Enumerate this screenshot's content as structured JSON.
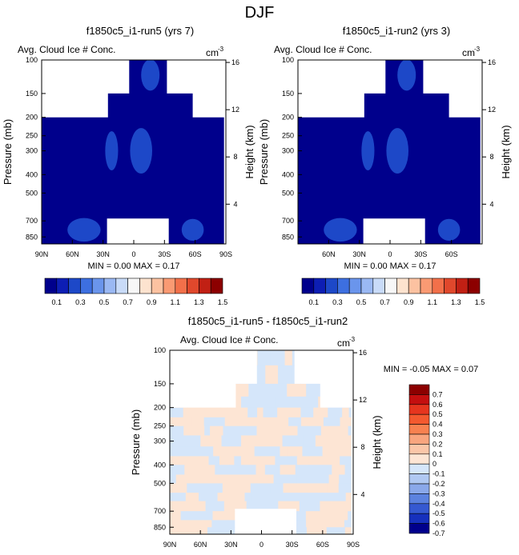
{
  "page": {
    "title": "DJF"
  },
  "colors": {
    "base_fill": "#00008c",
    "blob_fill": "#1d48c8",
    "positive_diff": "#fde5d4",
    "negative_diff": "#d5e6fa"
  },
  "chart_data": [
    {
      "type": "heatmap",
      "title": "f1850c5_i1-run5 (yrs 7)",
      "subtitle_left": "Avg. Cloud Ice # Conc.",
      "units": "cm",
      "units_exponent": "-3",
      "ylabel": "Pressure (mb)",
      "ylabel_right": "Height (km)",
      "x_ticks": [
        "90N",
        "60N",
        "30N",
        "0",
        "30S",
        "60S",
        "90S"
      ],
      "y_ticks": [
        "100",
        "150",
        "200",
        "250",
        "300",
        "400",
        "500",
        "700",
        "850"
      ],
      "height_ticks": [
        "16",
        "12",
        "8",
        "4"
      ],
      "ylim": [
        100,
        925
      ],
      "y_scale": "log",
      "xlim": [
        "90N",
        "90S"
      ],
      "min_max_text": "MIN =  0.00  MAX =  0.17",
      "min": 0.0,
      "max": 0.17,
      "colorbar_labels": [
        "0.1",
        "0.3",
        "0.5",
        "0.7",
        "0.9",
        "1.1",
        "1.3",
        "1.5"
      ]
    },
    {
      "type": "heatmap",
      "title": "f1850c5_i1-run2 (yrs 3)",
      "subtitle_left": "Avg. Cloud Ice # Conc.",
      "units": "cm",
      "units_exponent": "-3",
      "ylabel": "Pressure (mb)",
      "ylabel_right": "Height (km)",
      "x_ticks": [
        "60N",
        "30N",
        "0",
        "30S",
        "60S"
      ],
      "y_ticks": [
        "100",
        "150",
        "200",
        "250",
        "300",
        "400",
        "500",
        "700",
        "850"
      ],
      "height_ticks": [
        "16",
        "12",
        "8",
        "4"
      ],
      "ylim": [
        100,
        925
      ],
      "y_scale": "log",
      "min_max_text": "MIN =  0.00  MAX =  0.17",
      "min": 0.0,
      "max": 0.17,
      "colorbar_labels": [
        "0.1",
        "0.3",
        "0.5",
        "0.7",
        "0.9",
        "1.1",
        "1.3",
        "1.5"
      ]
    },
    {
      "type": "heatmap",
      "title": "f1850c5_i1-run5 - f1850c5_i1-run2",
      "subtitle_left": "Avg. Cloud Ice # Conc.",
      "units": "cm",
      "units_exponent": "-3",
      "ylabel": "Pressure (mb)",
      "ylabel_right": "Height (km)",
      "x_ticks": [
        "90N",
        "60N",
        "30N",
        "0",
        "30S",
        "60S",
        "90S"
      ],
      "y_ticks": [
        "100",
        "150",
        "200",
        "250",
        "300",
        "400",
        "500",
        "700",
        "850"
      ],
      "height_ticks": [
        "16",
        "12",
        "8",
        "4"
      ],
      "ylim": [
        100,
        925
      ],
      "y_scale": "log",
      "min_max_text": "MIN =  -0.05  MAX =  0.07",
      "min": -0.05,
      "max": 0.07,
      "colorbar_labels": [
        "0.7",
        "0.6",
        "0.5",
        "0.4",
        "0.3",
        "0.2",
        "0.1",
        "0",
        "-0.1",
        "-0.2",
        "-0.3",
        "-0.4",
        "-0.5",
        "-0.6",
        "-0.7"
      ]
    }
  ],
  "colorbar_abs": {
    "colors": [
      "#00008c",
      "#0d1eb4",
      "#1d48c8",
      "#3d6fe0",
      "#6a95ec",
      "#9ab8f3",
      "#c9dbf8",
      "#f7f7f7",
      "#fde3cf",
      "#fcc2a1",
      "#fa9a73",
      "#f2704a",
      "#e0482c",
      "#c12014",
      "#8c0000"
    ]
  },
  "colorbar_diff": {
    "colors": [
      "#8c0000",
      "#c40f0f",
      "#e6351e",
      "#f3592f",
      "#f88150",
      "#f9a57e",
      "#fbc6a8",
      "#fde5d4",
      "#d5e6fa",
      "#b0c8f2",
      "#8aa8ea",
      "#5c82df",
      "#3559d1",
      "#1630bd",
      "#00008c"
    ]
  }
}
